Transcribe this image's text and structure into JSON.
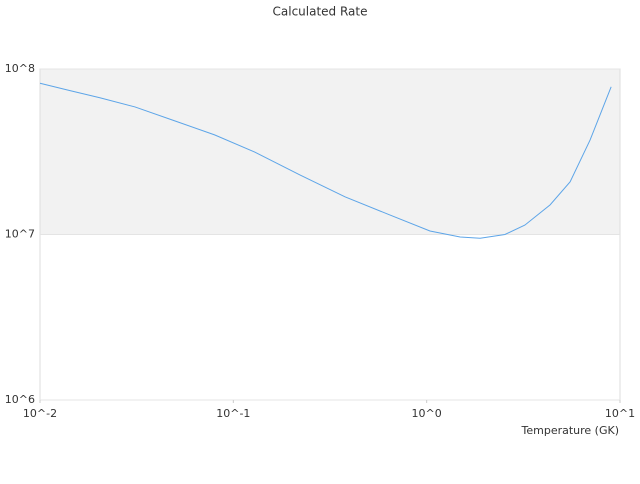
{
  "chart_data": {
    "type": "line",
    "title": "Calculated Rate",
    "x_label": "Temperature (GK)",
    "x": [
      0.01,
      0.0143,
      0.0204,
      0.031,
      0.05,
      0.08,
      0.129,
      0.221,
      0.378,
      0.647,
      1.04,
      1.49,
      1.89,
      2.54,
      3.22,
      4.35,
      5.52,
      7.0,
      9.0
    ],
    "series": [
      {
        "color": "#5da5e8",
        "values": [
          82000000,
          74000000,
          67000000,
          59000000,
          48500000,
          40000000,
          31500000,
          22900000,
          16900000,
          13100000,
          10500000,
          9660000,
          9500000,
          10000000,
          11400000,
          15100000,
          20800000,
          37200000,
          78000000
        ]
      }
    ],
    "xscale": "log",
    "yscale": "log",
    "xlim": [
      0.01,
      10
    ],
    "ylim": [
      1000000,
      100000000
    ],
    "xticks": [
      {
        "value": 0.01,
        "label": "10^-2"
      },
      {
        "value": 0.1,
        "label": "10^-1"
      },
      {
        "value": 1,
        "label": "10^0"
      },
      {
        "value": 10,
        "label": "10^1"
      }
    ],
    "yticks": [
      {
        "value": 1000000,
        "label": "10^6"
      },
      {
        "value": 10000000,
        "label": "10^7"
      },
      {
        "value": 100000000,
        "label": "10^8"
      }
    ],
    "grid_bands": true
  }
}
